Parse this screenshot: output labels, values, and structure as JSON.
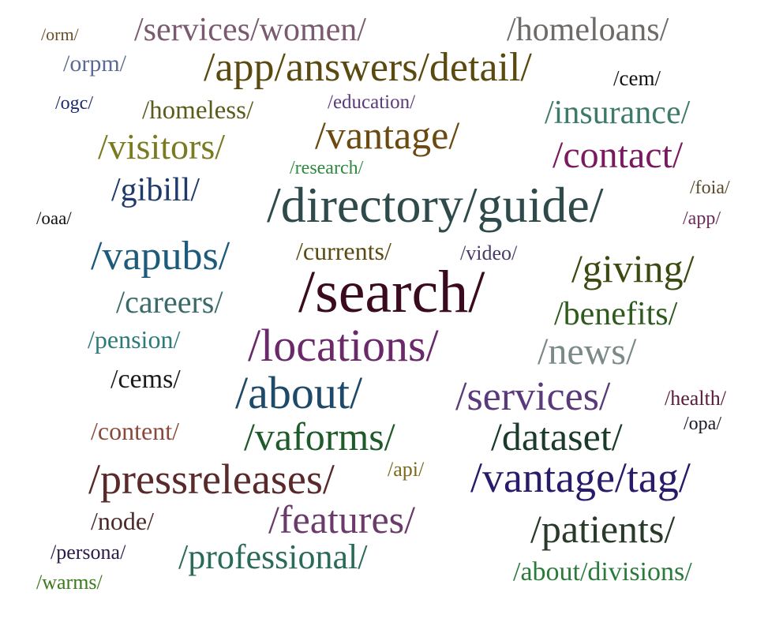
{
  "words": [
    {
      "text": "/orm/",
      "color": "#6b4f2a"
    },
    {
      "text": "/services/women/",
      "color": "#7a5a6e"
    },
    {
      "text": "/homeloans/",
      "color": "#6e6a68"
    },
    {
      "text": "/orpm/",
      "color": "#5a6a92"
    },
    {
      "text": "/app/answers/detail/",
      "color": "#5b4a10"
    },
    {
      "text": "/cem/",
      "color": "#111111"
    },
    {
      "text": "/ogc/",
      "color": "#1c2d6b"
    },
    {
      "text": "/homeless/",
      "color": "#5a5a1a"
    },
    {
      "text": "/education/",
      "color": "#5a3a7a"
    },
    {
      "text": "/insurance/",
      "color": "#3d7a6a"
    },
    {
      "text": "/visitors/",
      "color": "#7a7a20"
    },
    {
      "text": "/vantage/",
      "color": "#6a4a10"
    },
    {
      "text": "/contact/",
      "color": "#7a1a5e"
    },
    {
      "text": "/research/",
      "color": "#2e8a3e"
    },
    {
      "text": "/gibill/",
      "color": "#1e3a6a"
    },
    {
      "text": "/directory/guide/",
      "color": "#2e4a4a"
    },
    {
      "text": "/foia/",
      "color": "#5a4a2a"
    },
    {
      "text": "/oaa/",
      "color": "#111111"
    },
    {
      "text": "/app/",
      "color": "#6a2a5a"
    },
    {
      "text": "/vapubs/",
      "color": "#1e5a7a"
    },
    {
      "text": "/currents/",
      "color": "#5a4a10"
    },
    {
      "text": "/video/",
      "color": "#4a3a6a"
    },
    {
      "text": "/giving/",
      "color": "#3a4a10"
    },
    {
      "text": "/search/",
      "color": "#3a0a1e"
    },
    {
      "text": "/careers/",
      "color": "#3a6a6a"
    },
    {
      "text": "/benefits/",
      "color": "#2e5a1e"
    },
    {
      "text": "/pension/",
      "color": "#2e7a7a"
    },
    {
      "text": "/locations/",
      "color": "#6a2a6a"
    },
    {
      "text": "/news/",
      "color": "#7a8a88"
    },
    {
      "text": "/cems/",
      "color": "#1a1a1a"
    },
    {
      "text": "/about/",
      "color": "#1e4a6a"
    },
    {
      "text": "/services/",
      "color": "#5a3a7a"
    },
    {
      "text": "/health/",
      "color": "#5a1a3a"
    },
    {
      "text": "/opa/",
      "color": "#1a1a2a"
    },
    {
      "text": "/content/",
      "color": "#8a4a3a"
    },
    {
      "text": "/vaforms/",
      "color": "#1e5a2a"
    },
    {
      "text": "/dataset/",
      "color": "#1a3a2a"
    },
    {
      "text": "/api/",
      "color": "#7a6a1a"
    },
    {
      "text": "/pressreleases/",
      "color": "#5a2a2a"
    },
    {
      "text": "/vantage/tag/",
      "color": "#2a1a6a"
    },
    {
      "text": "/node/",
      "color": "#4a2a2a"
    },
    {
      "text": "/features/",
      "color": "#6a3a6a"
    },
    {
      "text": "/patients/",
      "color": "#2a3a2a"
    },
    {
      "text": "/persona/",
      "color": "#2a1a4a"
    },
    {
      "text": "/professional/",
      "color": "#2a6a5a"
    },
    {
      "text": "/about/divisions/",
      "color": "#2a7a3a"
    },
    {
      "text": "/warms/",
      "color": "#3a7a1a"
    }
  ]
}
